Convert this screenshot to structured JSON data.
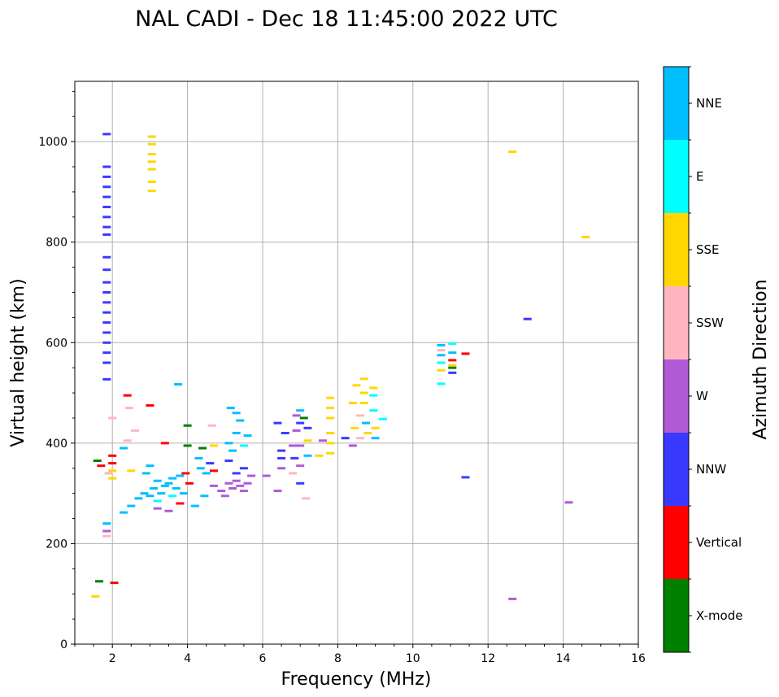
{
  "chart_data": {
    "type": "scatter",
    "title": "NAL CADI - Dec 18 11:45:00 2022 UTC",
    "xlabel": "Frequency (MHz)",
    "ylabel": "Virtual height (km)",
    "xlim": [
      1,
      16
    ],
    "ylim": [
      0,
      1120
    ],
    "xticks": [
      2,
      4,
      6,
      8,
      10,
      12,
      14,
      16
    ],
    "yticks": [
      0,
      200,
      400,
      600,
      800,
      1000
    ],
    "grid": true,
    "colorbar": {
      "label": "Azimuth Direction",
      "categories": [
        {
          "name": "X-mode",
          "color": "#008000"
        },
        {
          "name": "Vertical",
          "color": "#ff0000"
        },
        {
          "name": "NNW",
          "color": "#3a3aff"
        },
        {
          "name": "W",
          "color": "#b05ad8"
        },
        {
          "name": "SSW",
          "color": "#ffb6c1"
        },
        {
          "name": "SSE",
          "color": "#ffd700"
        },
        {
          "name": "E",
          "color": "#00ffff"
        },
        {
          "name": "NNE",
          "color": "#00bfff"
        }
      ]
    },
    "points": [
      {
        "x": 1.85,
        "y": 1015,
        "c": "NNW"
      },
      {
        "x": 1.85,
        "y": 950,
        "c": "NNW"
      },
      {
        "x": 1.85,
        "y": 930,
        "c": "NNW"
      },
      {
        "x": 1.85,
        "y": 910,
        "c": "NNW"
      },
      {
        "x": 1.85,
        "y": 890,
        "c": "NNW"
      },
      {
        "x": 1.85,
        "y": 870,
        "c": "NNW"
      },
      {
        "x": 1.85,
        "y": 850,
        "c": "NNW"
      },
      {
        "x": 1.85,
        "y": 830,
        "c": "NNW"
      },
      {
        "x": 1.85,
        "y": 815,
        "c": "NNW"
      },
      {
        "x": 1.85,
        "y": 770,
        "c": "NNW"
      },
      {
        "x": 1.85,
        "y": 745,
        "c": "NNW"
      },
      {
        "x": 1.85,
        "y": 720,
        "c": "NNW"
      },
      {
        "x": 1.85,
        "y": 700,
        "c": "NNW"
      },
      {
        "x": 1.85,
        "y": 680,
        "c": "NNW"
      },
      {
        "x": 1.85,
        "y": 660,
        "c": "NNW"
      },
      {
        "x": 1.85,
        "y": 640,
        "c": "NNW"
      },
      {
        "x": 1.85,
        "y": 620,
        "c": "NNW"
      },
      {
        "x": 1.85,
        "y": 600,
        "c": "NNW"
      },
      {
        "x": 1.85,
        "y": 580,
        "c": "NNW"
      },
      {
        "x": 1.85,
        "y": 560,
        "c": "NNW"
      },
      {
        "x": 1.85,
        "y": 527,
        "c": "NNW"
      },
      {
        "x": 1.85,
        "y": 240,
        "c": "NNE"
      },
      {
        "x": 1.85,
        "y": 225,
        "c": "W"
      },
      {
        "x": 1.85,
        "y": 215,
        "c": "SSW"
      },
      {
        "x": 3.05,
        "y": 1010,
        "c": "SSE"
      },
      {
        "x": 3.05,
        "y": 995,
        "c": "SSE"
      },
      {
        "x": 3.05,
        "y": 975,
        "c": "SSE"
      },
      {
        "x": 3.05,
        "y": 960,
        "c": "SSE"
      },
      {
        "x": 3.05,
        "y": 945,
        "c": "SSE"
      },
      {
        "x": 3.05,
        "y": 920,
        "c": "SSE"
      },
      {
        "x": 3.05,
        "y": 902,
        "c": "SSE"
      },
      {
        "x": 1.55,
        "y": 95,
        "c": "SSE"
      },
      {
        "x": 1.65,
        "y": 125,
        "c": "X-mode"
      },
      {
        "x": 2.05,
        "y": 122,
        "c": "Vertical"
      },
      {
        "x": 1.6,
        "y": 365,
        "c": "X-mode"
      },
      {
        "x": 1.7,
        "y": 355,
        "c": "Vertical"
      },
      {
        "x": 1.9,
        "y": 340,
        "c": "SSW"
      },
      {
        "x": 2.0,
        "y": 375,
        "c": "Vertical"
      },
      {
        "x": 2.0,
        "y": 360,
        "c": "Vertical"
      },
      {
        "x": 2.0,
        "y": 345,
        "c": "SSE"
      },
      {
        "x": 2.0,
        "y": 330,
        "c": "SSE"
      },
      {
        "x": 2.0,
        "y": 450,
        "c": "SSW"
      },
      {
        "x": 2.3,
        "y": 390,
        "c": "NNE"
      },
      {
        "x": 2.4,
        "y": 405,
        "c": "SSW"
      },
      {
        "x": 2.45,
        "y": 470,
        "c": "SSW"
      },
      {
        "x": 2.4,
        "y": 495,
        "c": "Vertical"
      },
      {
        "x": 2.5,
        "y": 345,
        "c": "SSE"
      },
      {
        "x": 2.6,
        "y": 425,
        "c": "SSW"
      },
      {
        "x": 2.3,
        "y": 262,
        "c": "NNE"
      },
      {
        "x": 2.5,
        "y": 275,
        "c": "NNE"
      },
      {
        "x": 2.7,
        "y": 290,
        "c": "NNE"
      },
      {
        "x": 2.85,
        "y": 300,
        "c": "NNE"
      },
      {
        "x": 2.9,
        "y": 340,
        "c": "NNE"
      },
      {
        "x": 3.0,
        "y": 355,
        "c": "NNE"
      },
      {
        "x": 3.0,
        "y": 295,
        "c": "NNE"
      },
      {
        "x": 3.1,
        "y": 310,
        "c": "NNE"
      },
      {
        "x": 3.2,
        "y": 325,
        "c": "NNE"
      },
      {
        "x": 3.3,
        "y": 300,
        "c": "NNE"
      },
      {
        "x": 3.4,
        "y": 315,
        "c": "NNE"
      },
      {
        "x": 3.5,
        "y": 320,
        "c": "NNE"
      },
      {
        "x": 3.6,
        "y": 330,
        "c": "NNE"
      },
      {
        "x": 3.7,
        "y": 310,
        "c": "NNE"
      },
      {
        "x": 3.8,
        "y": 335,
        "c": "NNE"
      },
      {
        "x": 3.9,
        "y": 300,
        "c": "NNE"
      },
      {
        "x": 3.2,
        "y": 285,
        "c": "E"
      },
      {
        "x": 3.6,
        "y": 295,
        "c": "E"
      },
      {
        "x": 3.0,
        "y": 475,
        "c": "Vertical"
      },
      {
        "x": 3.4,
        "y": 400,
        "c": "Vertical"
      },
      {
        "x": 3.75,
        "y": 517,
        "c": "NNE"
      },
      {
        "x": 3.2,
        "y": 270,
        "c": "W"
      },
      {
        "x": 3.5,
        "y": 265,
        "c": "W"
      },
      {
        "x": 3.8,
        "y": 280,
        "c": "Vertical"
      },
      {
        "x": 3.95,
        "y": 340,
        "c": "Vertical"
      },
      {
        "x": 4.0,
        "y": 435,
        "c": "X-mode"
      },
      {
        "x": 4.0,
        "y": 395,
        "c": "X-mode"
      },
      {
        "x": 4.05,
        "y": 320,
        "c": "Vertical"
      },
      {
        "x": 4.2,
        "y": 275,
        "c": "NNE"
      },
      {
        "x": 4.3,
        "y": 370,
        "c": "NNE"
      },
      {
        "x": 4.35,
        "y": 350,
        "c": "NNE"
      },
      {
        "x": 4.4,
        "y": 390,
        "c": "X-mode"
      },
      {
        "x": 4.5,
        "y": 340,
        "c": "NNE"
      },
      {
        "x": 4.45,
        "y": 295,
        "c": "NNE"
      },
      {
        "x": 4.6,
        "y": 360,
        "c": "NNW"
      },
      {
        "x": 4.7,
        "y": 345,
        "c": "Vertical"
      },
      {
        "x": 4.7,
        "y": 395,
        "c": "SSE"
      },
      {
        "x": 4.65,
        "y": 435,
        "c": "SSW"
      },
      {
        "x": 4.7,
        "y": 315,
        "c": "W"
      },
      {
        "x": 4.9,
        "y": 305,
        "c": "W"
      },
      {
        "x": 5.0,
        "y": 295,
        "c": "W"
      },
      {
        "x": 5.1,
        "y": 320,
        "c": "W"
      },
      {
        "x": 5.2,
        "y": 310,
        "c": "W"
      },
      {
        "x": 5.3,
        "y": 325,
        "c": "W"
      },
      {
        "x": 5.4,
        "y": 315,
        "c": "W"
      },
      {
        "x": 5.5,
        "y": 305,
        "c": "W"
      },
      {
        "x": 5.6,
        "y": 320,
        "c": "W"
      },
      {
        "x": 5.3,
        "y": 340,
        "c": "NNW"
      },
      {
        "x": 5.1,
        "y": 365,
        "c": "NNW"
      },
      {
        "x": 5.2,
        "y": 385,
        "c": "NNE"
      },
      {
        "x": 5.1,
        "y": 400,
        "c": "NNE"
      },
      {
        "x": 5.3,
        "y": 420,
        "c": "NNE"
      },
      {
        "x": 5.4,
        "y": 445,
        "c": "NNE"
      },
      {
        "x": 5.15,
        "y": 470,
        "c": "NNE"
      },
      {
        "x": 5.3,
        "y": 460,
        "c": "NNE"
      },
      {
        "x": 5.5,
        "y": 395,
        "c": "E"
      },
      {
        "x": 5.6,
        "y": 415,
        "c": "NNE"
      },
      {
        "x": 5.5,
        "y": 350,
        "c": "NNW"
      },
      {
        "x": 5.7,
        "y": 335,
        "c": "W"
      },
      {
        "x": 6.1,
        "y": 335,
        "c": "W"
      },
      {
        "x": 6.4,
        "y": 305,
        "c": "W"
      },
      {
        "x": 6.5,
        "y": 350,
        "c": "W"
      },
      {
        "x": 6.5,
        "y": 385,
        "c": "NNW"
      },
      {
        "x": 6.4,
        "y": 440,
        "c": "NNW"
      },
      {
        "x": 6.6,
        "y": 420,
        "c": "NNW"
      },
      {
        "x": 6.5,
        "y": 370,
        "c": "NNW"
      },
      {
        "x": 6.8,
        "y": 340,
        "c": "SSW"
      },
      {
        "x": 6.8,
        "y": 395,
        "c": "W"
      },
      {
        "x": 6.9,
        "y": 425,
        "c": "W"
      },
      {
        "x": 6.9,
        "y": 455,
        "c": "W"
      },
      {
        "x": 6.85,
        "y": 370,
        "c": "NNW"
      },
      {
        "x": 7.0,
        "y": 440,
        "c": "NNW"
      },
      {
        "x": 7.0,
        "y": 395,
        "c": "W"
      },
      {
        "x": 7.0,
        "y": 355,
        "c": "W"
      },
      {
        "x": 7.0,
        "y": 320,
        "c": "NNW"
      },
      {
        "x": 7.0,
        "y": 465,
        "c": "NNE"
      },
      {
        "x": 7.1,
        "y": 450,
        "c": "X-mode"
      },
      {
        "x": 7.2,
        "y": 430,
        "c": "NNW"
      },
      {
        "x": 7.2,
        "y": 405,
        "c": "SSE"
      },
      {
        "x": 7.2,
        "y": 375,
        "c": "NNE"
      },
      {
        "x": 7.15,
        "y": 290,
        "c": "SSW"
      },
      {
        "x": 7.5,
        "y": 375,
        "c": "SSE"
      },
      {
        "x": 7.6,
        "y": 405,
        "c": "W"
      },
      {
        "x": 7.8,
        "y": 490,
        "c": "SSE"
      },
      {
        "x": 7.8,
        "y": 470,
        "c": "SSE"
      },
      {
        "x": 7.8,
        "y": 450,
        "c": "SSE"
      },
      {
        "x": 7.8,
        "y": 420,
        "c": "SSE"
      },
      {
        "x": 7.8,
        "y": 400,
        "c": "SSE"
      },
      {
        "x": 7.8,
        "y": 380,
        "c": "SSE"
      },
      {
        "x": 8.2,
        "y": 410,
        "c": "NNW"
      },
      {
        "x": 8.4,
        "y": 395,
        "c": "W"
      },
      {
        "x": 8.45,
        "y": 430,
        "c": "SSE"
      },
      {
        "x": 8.4,
        "y": 480,
        "c": "SSE"
      },
      {
        "x": 8.5,
        "y": 515,
        "c": "SSE"
      },
      {
        "x": 8.7,
        "y": 528,
        "c": "SSE"
      },
      {
        "x": 8.7,
        "y": 500,
        "c": "SSE"
      },
      {
        "x": 8.7,
        "y": 480,
        "c": "SSE"
      },
      {
        "x": 8.6,
        "y": 455,
        "c": "SSW"
      },
      {
        "x": 8.75,
        "y": 440,
        "c": "NNE"
      },
      {
        "x": 8.8,
        "y": 420,
        "c": "SSE"
      },
      {
        "x": 8.6,
        "y": 410,
        "c": "SSW"
      },
      {
        "x": 8.95,
        "y": 510,
        "c": "SSE"
      },
      {
        "x": 8.95,
        "y": 495,
        "c": "E"
      },
      {
        "x": 8.95,
        "y": 465,
        "c": "E"
      },
      {
        "x": 9.0,
        "y": 430,
        "c": "SSE"
      },
      {
        "x": 9.2,
        "y": 448,
        "c": "E"
      },
      {
        "x": 9.0,
        "y": 410,
        "c": "NNE"
      },
      {
        "x": 10.75,
        "y": 595,
        "c": "NNE"
      },
      {
        "x": 10.75,
        "y": 575,
        "c": "NNE"
      },
      {
        "x": 10.75,
        "y": 560,
        "c": "E"
      },
      {
        "x": 10.75,
        "y": 545,
        "c": "SSE"
      },
      {
        "x": 10.75,
        "y": 518,
        "c": "E"
      },
      {
        "x": 10.75,
        "y": 585,
        "c": "SSW"
      },
      {
        "x": 11.05,
        "y": 598,
        "c": "E"
      },
      {
        "x": 11.05,
        "y": 580,
        "c": "NNE"
      },
      {
        "x": 11.05,
        "y": 565,
        "c": "Vertical"
      },
      {
        "x": 11.05,
        "y": 550,
        "c": "X-mode"
      },
      {
        "x": 11.05,
        "y": 540,
        "c": "NNW"
      },
      {
        "x": 11.05,
        "y": 555,
        "c": "SSE"
      },
      {
        "x": 11.4,
        "y": 578,
        "c": "Vertical"
      },
      {
        "x": 11.4,
        "y": 332,
        "c": "NNW"
      },
      {
        "x": 12.65,
        "y": 980,
        "c": "SSE"
      },
      {
        "x": 13.05,
        "y": 647,
        "c": "NNW"
      },
      {
        "x": 12.65,
        "y": 90,
        "c": "W"
      },
      {
        "x": 14.6,
        "y": 810,
        "c": "SSE"
      },
      {
        "x": 14.15,
        "y": 282,
        "c": "W"
      }
    ]
  }
}
